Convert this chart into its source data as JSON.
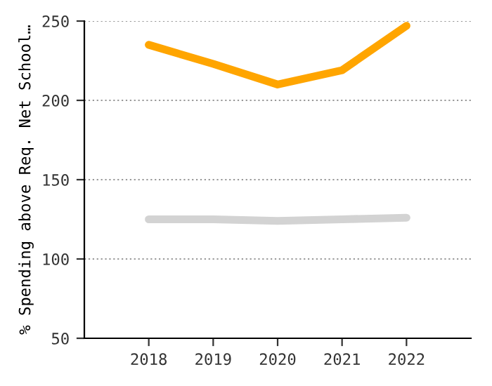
{
  "chart_data": {
    "type": "line",
    "ylabel": "% Spending above Req. Net School…",
    "x": [
      2018,
      2019,
      2020,
      2021,
      2022
    ],
    "series": [
      {
        "color": "#ffa500",
        "values": [
          235,
          223,
          210,
          219,
          247
        ]
      },
      {
        "color": "#d3d3d3",
        "values": [
          125,
          125,
          124,
          125,
          126
        ]
      }
    ],
    "xlim": [
      2017,
      2023
    ],
    "xticks": [
      2018,
      2019,
      2020,
      2021,
      2022
    ],
    "ylim": [
      50,
      250
    ],
    "yticks": [
      50,
      100,
      150,
      200,
      250
    ],
    "grid": "y",
    "marker": "none",
    "line_style": "solid",
    "legend": false
  }
}
